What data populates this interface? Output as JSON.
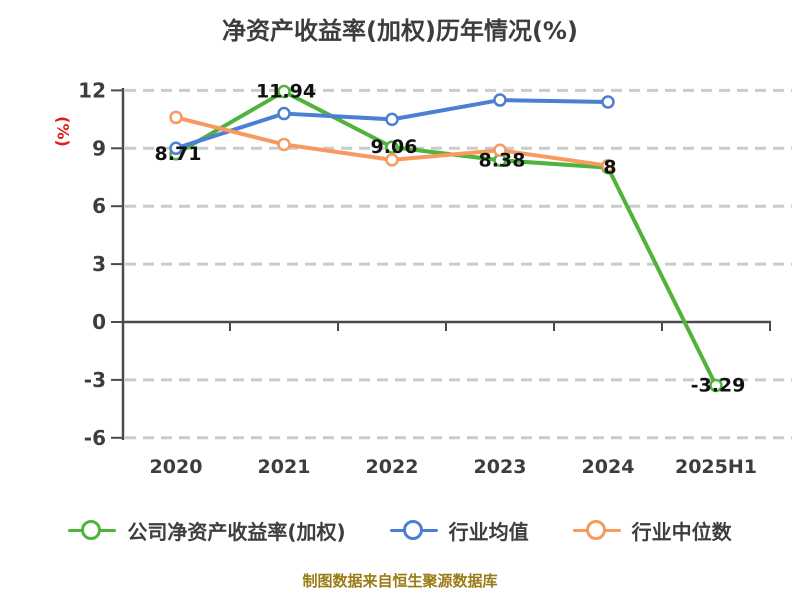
{
  "footer": "制图数据来自恒生聚源数据库",
  "colors": {
    "background": "#ffffff",
    "grid": "#cbcbcb",
    "axis": "#4b4b4b",
    "tick_text": "#3d3d3d",
    "data_label": "#111111",
    "y_axis_label": "#e11d1d",
    "footer_text": "#9a7b15",
    "series_green": "#4eb43b",
    "series_blue": "#4c7fd2",
    "series_orange": "#f8995f"
  },
  "chart_data": {
    "type": "line",
    "title": "净资产收益率(加权)历年情况(%)",
    "ylabel": "(%)",
    "xlabel": "",
    "categories": [
      "2020",
      "2021",
      "2022",
      "2023",
      "2024",
      "2025H1"
    ],
    "yticks": [
      12,
      9,
      6,
      3,
      0,
      -3,
      -6
    ],
    "ytick_labels": [
      "12",
      "9",
      "6",
      "3",
      "0",
      "-3",
      "-6"
    ],
    "ylim": [
      -6,
      12
    ],
    "grid": "horizontal-dashed",
    "legend_position": "bottom",
    "series": [
      {
        "name": "公司净资产收益率(加权)",
        "color": "#4eb43b",
        "values": [
          8.71,
          11.94,
          9.06,
          8.38,
          8,
          -3.29
        ],
        "point_labels": [
          "8.71",
          "11.94",
          "9.06",
          "8.38",
          "8",
          "-3.29"
        ]
      },
      {
        "name": "行业均值",
        "color": "#4c7fd2",
        "values": [
          9.0,
          10.8,
          10.5,
          11.5,
          11.4,
          null
        ],
        "point_labels": []
      },
      {
        "name": "行业中位数",
        "color": "#f8995f",
        "values": [
          10.6,
          9.2,
          8.4,
          8.9,
          8.1,
          null
        ],
        "point_labels": []
      }
    ]
  }
}
